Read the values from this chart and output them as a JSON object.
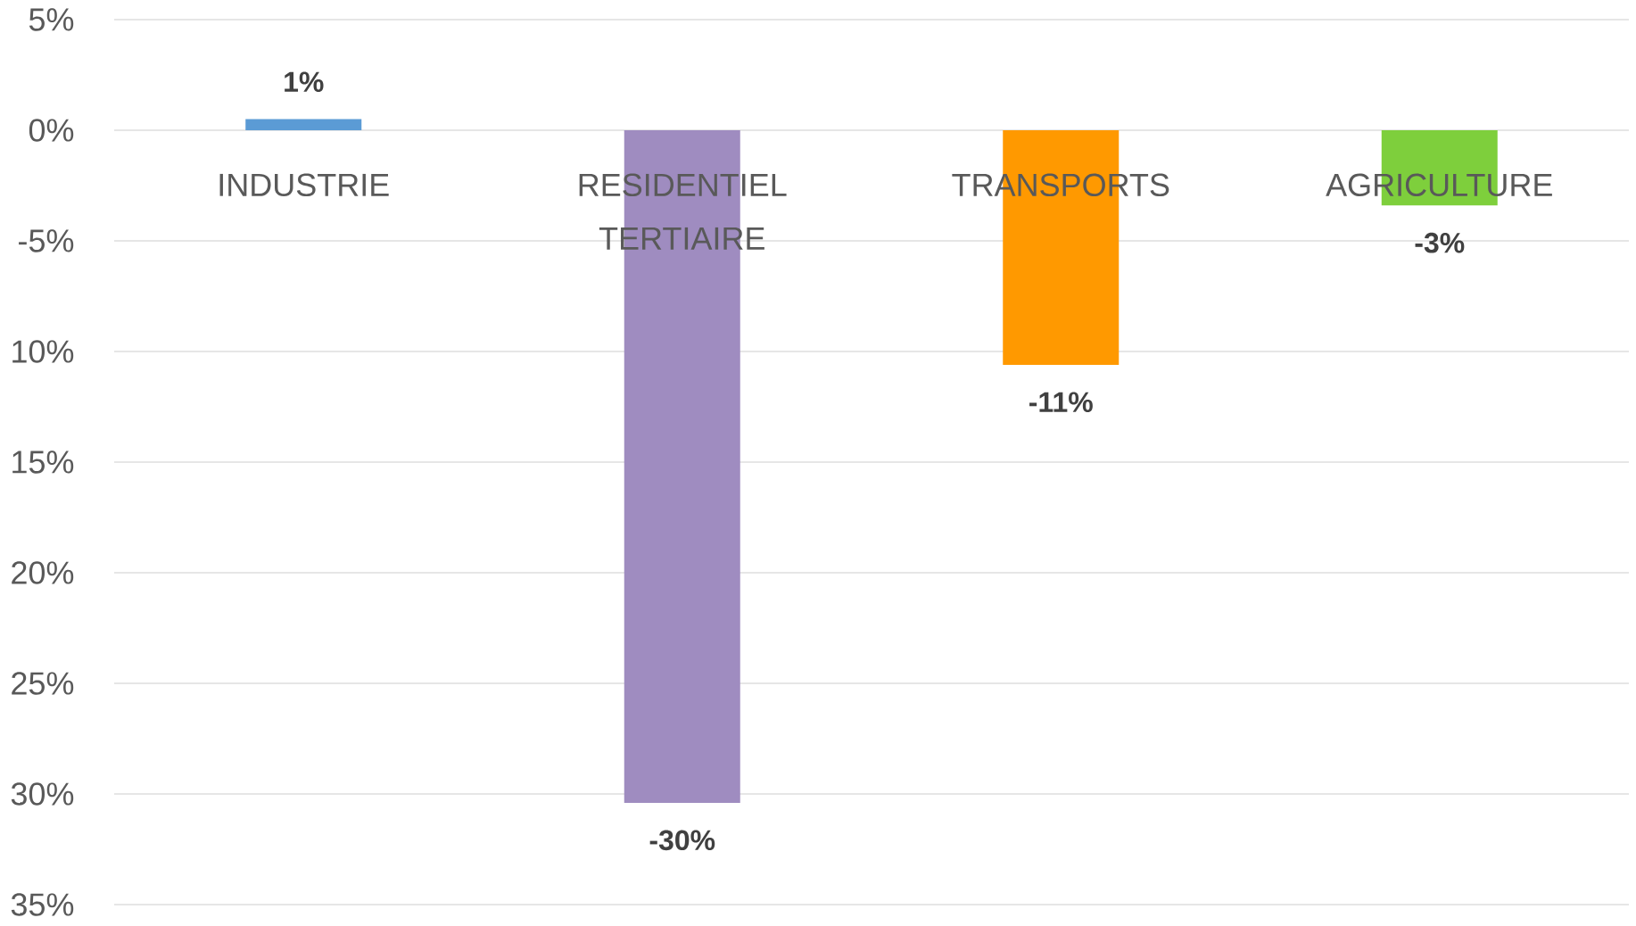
{
  "chart_data": {
    "type": "bar",
    "categories": [
      "INDUSTRIE",
      "RESIDENTIEL TERTIAIRE",
      "TRANSPORTS",
      "AGRICULTURE"
    ],
    "values": [
      0.5,
      -30.4,
      -10.6,
      -3.4
    ],
    "colors": [
      "#5b9bd5",
      "#9f8cc0",
      "#ff9900",
      "#7ecf3c"
    ],
    "value_labels": [
      "1%",
      "-30%",
      "-11%",
      "-3%"
    ],
    "ylim": [
      -35,
      5
    ],
    "yticks": [
      {
        "value": 5,
        "label": "5%"
      },
      {
        "value": 0,
        "label": "0%"
      },
      {
        "value": -5,
        "label": "-5%"
      },
      {
        "value": -10,
        "label": "10%"
      },
      {
        "value": -15,
        "label": "15%"
      },
      {
        "value": -20,
        "label": "20%"
      },
      {
        "value": -25,
        "label": "25%"
      },
      {
        "value": -30,
        "label": "30%"
      },
      {
        "value": -35,
        "label": "35%"
      }
    ],
    "grid": "y"
  }
}
